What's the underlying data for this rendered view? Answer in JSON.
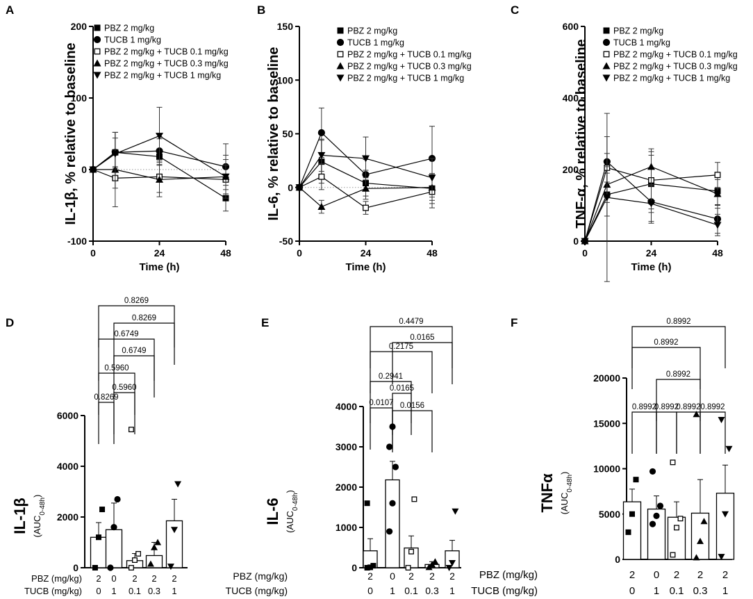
{
  "chart_data": [
    {
      "panel": "A",
      "type": "line",
      "ylabel": "IL-1β, % relative to baseline",
      "xlabel": "Time (h)",
      "x": [
        0,
        8,
        24,
        48
      ],
      "xticks": [
        0,
        24,
        48
      ],
      "xlim": [
        0,
        48
      ],
      "ylim": [
        -100,
        200
      ],
      "yticks": [
        -100,
        0,
        100,
        200
      ],
      "baseline": 0,
      "legend_position": "top-left",
      "series": [
        {
          "name": "PBZ 2 mg/kg",
          "marker": "square-filled",
          "values": [
            0,
            24,
            18,
            -40
          ],
          "errors": [
            0,
            28,
            25,
            18
          ]
        },
        {
          "name": "TUCB 1 mg/kg",
          "marker": "circle-filled",
          "values": [
            0,
            24,
            26,
            4
          ],
          "errors": [
            0,
            20,
            20,
            32
          ]
        },
        {
          "name": "PBZ 2 mg/kg + TUCB 0.1 mg/kg",
          "marker": "square-open",
          "values": [
            0,
            -12,
            -10,
            -14
          ],
          "errors": [
            0,
            14,
            22,
            20
          ]
        },
        {
          "name": "PBZ 2 mg/kg + TUCB 0.3 mg/kg",
          "marker": "triangle-up",
          "values": [
            0,
            0,
            -14,
            -10
          ],
          "errors": [
            0,
            52,
            24,
            24
          ]
        },
        {
          "name": "PBZ 2 mg/kg + TUCB 1 mg/kg",
          "marker": "triangle-down",
          "values": [
            0,
            22,
            47,
            -10
          ],
          "errors": [
            0,
            30,
            40,
            30
          ]
        }
      ]
    },
    {
      "panel": "B",
      "type": "line",
      "ylabel": "IL-6, % relative to baseline",
      "xlabel": "Time (h)",
      "x": [
        0,
        8,
        24,
        48
      ],
      "xticks": [
        0,
        24,
        48
      ],
      "xlim": [
        0,
        48
      ],
      "ylim": [
        -50,
        150
      ],
      "yticks": [
        -50,
        0,
        50,
        100,
        150
      ],
      "baseline": 0,
      "legend_position": "top-right",
      "series": [
        {
          "name": "PBZ 2 mg/kg",
          "marker": "square-filled",
          "values": [
            0,
            24,
            4,
            -1
          ],
          "errors": [
            0,
            20,
            12,
            14
          ]
        },
        {
          "name": "TUCB 1 mg/kg",
          "marker": "circle-filled",
          "values": [
            0,
            51,
            12,
            27
          ],
          "errors": [
            0,
            23,
            14,
            30
          ]
        },
        {
          "name": "PBZ 2 mg/kg + TUCB 0.1 mg/kg",
          "marker": "square-open",
          "values": [
            0,
            10,
            -19,
            -4
          ],
          "errors": [
            0,
            12,
            6,
            15
          ]
        },
        {
          "name": "PBZ 2 mg/kg + TUCB 0.3 mg/kg",
          "marker": "triangle-up",
          "values": [
            0,
            -18,
            -1,
            0
          ],
          "errors": [
            0,
            6,
            10,
            12
          ]
        },
        {
          "name": "PBZ 2 mg/kg + TUCB 1 mg/kg",
          "marker": "triangle-down",
          "values": [
            0,
            30,
            27,
            9
          ],
          "errors": [
            0,
            15,
            20,
            18
          ]
        }
      ]
    },
    {
      "panel": "C",
      "type": "line",
      "ylabel": "TNF-α, % relative to baseline",
      "xlabel": "Time (h)",
      "x": [
        0,
        8,
        24,
        48
      ],
      "xticks": [
        0,
        24,
        48
      ],
      "xlim": [
        0,
        48
      ],
      "ylim": [
        0,
        600
      ],
      "yticks": [
        0,
        200,
        400,
        600
      ],
      "baseline": 0,
      "legend_position": "top-right",
      "series": [
        {
          "name": "PBZ 2 mg/kg",
          "marker": "square-filled",
          "values": [
            0,
            130,
            160,
            140
          ],
          "errors": [
            0,
            60,
            80,
            40
          ]
        },
        {
          "name": "TUCB 1 mg/kg",
          "marker": "circle-filled",
          "values": [
            0,
            222,
            110,
            62
          ],
          "errors": [
            0,
            70,
            60,
            40
          ]
        },
        {
          "name": "PBZ 2 mg/kg + TUCB 0.1 mg/kg",
          "marker": "square-open",
          "values": [
            0,
            205,
            170,
            185
          ],
          "errors": [
            0,
            40,
            80,
            35
          ]
        },
        {
          "name": "PBZ 2 mg/kg + TUCB 0.3 mg/kg",
          "marker": "triangle-up",
          "values": [
            0,
            158,
            208,
            132
          ],
          "errors": [
            0,
            50,
            50,
            40
          ]
        },
        {
          "name": "PBZ 2 mg/kg + TUCB 1 mg/kg",
          "marker": "triangle-down",
          "values": [
            0,
            122,
            105,
            45
          ],
          "errors": [
            0,
            235,
            50,
            30
          ]
        }
      ]
    },
    {
      "panel": "D",
      "type": "bar",
      "ylabel": "IL-1β",
      "ylabel_sub": "(AUC0-48h)",
      "ylabel_sub_main": "AUC",
      "ylabel_sub_index": "0-48h",
      "ylim": [
        0,
        6000
      ],
      "yticks": [
        0,
        2000,
        4000,
        6000
      ],
      "conditions": {
        "row1_label": "PBZ (mg/kg)",
        "row1": [
          "2",
          "0",
          "2",
          "2",
          "2"
        ],
        "row2_label": "TUCB (mg/kg)",
        "row2": [
          "0",
          "1",
          "0.1",
          "0.3",
          "1"
        ]
      },
      "values": [
        1200,
        1500,
        280,
        480,
        1850
      ],
      "errors": [
        580,
        1050,
        280,
        520,
        850
      ],
      "points": [
        {
          "marker": "square-filled",
          "values": [
            0,
            1200,
            2300
          ]
        },
        {
          "marker": "circle-filled",
          "values": [
            0,
            1600,
            2700
          ]
        },
        {
          "marker": "square-open",
          "values": [
            0,
            300,
            550,
            5450
          ]
        },
        {
          "marker": "triangle-up",
          "values": [
            150,
            800,
            1000
          ]
        },
        {
          "marker": "triangle-down",
          "values": [
            50,
            1500,
            3300
          ]
        }
      ],
      "comparisons": [
        {
          "from": 0,
          "to": 1,
          "p": "0.8269"
        },
        {
          "from": 1,
          "to": 2,
          "p": "0.5960"
        },
        {
          "from": 0,
          "to": 2,
          "p": "0.5960"
        },
        {
          "from": 1,
          "to": 3,
          "p": "0.6749"
        },
        {
          "from": 0,
          "to": 3,
          "p": "0.6749"
        },
        {
          "from": 1,
          "to": 4,
          "p": "0.8269"
        },
        {
          "from": 0,
          "to": 4,
          "p": "0.8269"
        }
      ]
    },
    {
      "panel": "E",
      "type": "bar",
      "ylabel": "IL-6",
      "ylabel_sub": "(AUC0-48h)",
      "ylabel_sub_main": "AUC",
      "ylabel_sub_index": "0-48h",
      "ylim": [
        0,
        4000
      ],
      "yticks": [
        0,
        1000,
        2000,
        3000,
        4000
      ],
      "conditions": {
        "row1_label": "PBZ (mg/kg)",
        "row1": [
          "2",
          "0",
          "2",
          "2",
          "2"
        ],
        "row2_label": "TUCB (mg/kg)",
        "row2": [
          "0",
          "1",
          "0.1",
          "0.3",
          "1"
        ]
      },
      "values": [
        420,
        2180,
        490,
        80,
        420
      ],
      "errors": [
        300,
        460,
        300,
        70,
        260
      ],
      "points": [
        {
          "marker": "square-filled",
          "values": [
            0,
            10,
            50,
            1600
          ]
        },
        {
          "marker": "circle-filled",
          "values": [
            900,
            1600,
            2500,
            3000,
            3500
          ]
        },
        {
          "marker": "square-open",
          "values": [
            0,
            400,
            1700
          ]
        },
        {
          "marker": "triangle-up",
          "values": [
            10,
            80,
            150
          ]
        },
        {
          "marker": "triangle-down",
          "values": [
            0,
            120,
            1400
          ]
        }
      ],
      "comparisons": [
        {
          "from": 0,
          "to": 1,
          "p": "0.0107"
        },
        {
          "from": 1,
          "to": 2,
          "p": "0.0165"
        },
        {
          "from": 0,
          "to": 2,
          "p": "0.2941"
        },
        {
          "from": 1,
          "to": 3,
          "p": "0.0156"
        },
        {
          "from": 0,
          "to": 3,
          "p": "0.2175"
        },
        {
          "from": 1,
          "to": 4,
          "p": "0.0165"
        },
        {
          "from": 0,
          "to": 4,
          "p": "0.4479"
        }
      ]
    },
    {
      "panel": "F",
      "type": "bar",
      "ylabel": "TNFα",
      "ylabel_sub": "(AUC0-48h)",
      "ylabel_sub_main": "AUC",
      "ylabel_sub_index": "0-48h",
      "ylim": [
        0,
        20000
      ],
      "yticks": [
        0,
        5000,
        10000,
        15000,
        20000
      ],
      "conditions": {
        "row1_label": "PBZ (mg/kg)",
        "row1": [
          "2",
          "0",
          "2",
          "2",
          "2"
        ],
        "row2_label": "TUCB (mg/kg)",
        "row2": [
          "0",
          "1",
          "0.1",
          "0.3",
          "1"
        ]
      },
      "values": [
        6350,
        5550,
        4650,
        5100,
        7300
      ],
      "errors": [
        1400,
        1450,
        1700,
        3700,
        3100
      ],
      "points": [
        {
          "marker": "square-filled",
          "values": [
            3000,
            5000,
            8800
          ]
        },
        {
          "marker": "circle-filled",
          "values": [
            3900,
            4800,
            5900,
            9700
          ]
        },
        {
          "marker": "square-open",
          "values": [
            500,
            3500,
            4500,
            10700
          ]
        },
        {
          "marker": "triangle-up",
          "values": [
            200,
            2000,
            4200,
            16000
          ]
        },
        {
          "marker": "triangle-down",
          "values": [
            300,
            5000,
            12200,
            15400
          ]
        }
      ],
      "comparisons": [
        {
          "from": 0,
          "to": 1,
          "p": "0.8992"
        },
        {
          "from": 1,
          "to": 2,
          "p": "0.8992"
        },
        {
          "from": 2,
          "to": 3,
          "p": "0.8992"
        },
        {
          "from": 3,
          "to": 4,
          "p": "0.8992"
        },
        {
          "from": 1,
          "to": 3,
          "p": "0.8992"
        },
        {
          "from": 0,
          "to": 3,
          "p": "0.8992"
        },
        {
          "from": 0,
          "to": 4,
          "p": "0.8992"
        }
      ]
    }
  ]
}
